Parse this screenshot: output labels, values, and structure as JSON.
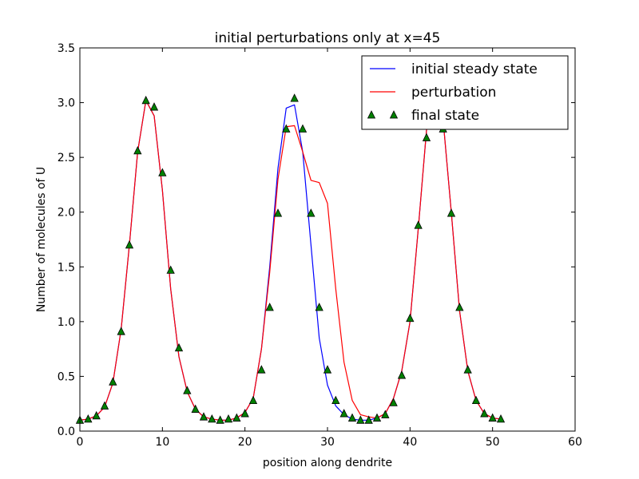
{
  "chart_data": {
    "type": "line",
    "title": "initial perturbations only at x=45",
    "xlabel": "position along dendrite",
    "ylabel": "Number of molecules of U",
    "xlim": [
      0,
      60
    ],
    "ylim": [
      0.0,
      3.5
    ],
    "xticks": [
      0,
      10,
      20,
      30,
      40,
      50,
      60
    ],
    "xtick_labels": [
      "0",
      "10",
      "20",
      "30",
      "40",
      "50",
      "60"
    ],
    "yticks": [
      0.0,
      0.5,
      1.0,
      1.5,
      2.0,
      2.5,
      3.0,
      3.5
    ],
    "ytick_labels": [
      "0.0",
      "0.5",
      "1.0",
      "1.5",
      "2.0",
      "2.5",
      "3.0",
      "3.5"
    ],
    "grid": false,
    "legend_position": "top-right",
    "x": [
      0,
      1,
      2,
      3,
      4,
      5,
      6,
      7,
      8,
      9,
      10,
      11,
      12,
      13,
      14,
      15,
      16,
      17,
      18,
      19,
      20,
      21,
      22,
      23,
      24,
      25,
      26,
      27,
      28,
      29,
      30,
      31,
      32,
      33,
      34,
      35,
      36,
      37,
      38,
      39,
      40,
      41,
      42,
      43,
      44,
      45,
      46,
      47,
      48,
      49,
      50,
      51
    ],
    "series": [
      {
        "name": "initial steady state",
        "color": "#0000ff",
        "style": "line",
        "values": [
          0.1,
          0.11,
          0.14,
          0.22,
          0.44,
          0.93,
          1.7,
          2.55,
          3.02,
          2.88,
          2.2,
          1.3,
          0.68,
          0.36,
          0.2,
          0.13,
          0.11,
          0.1,
          0.1,
          0.12,
          0.17,
          0.3,
          0.75,
          1.5,
          2.4,
          2.95,
          2.98,
          2.55,
          1.7,
          0.85,
          0.42,
          0.23,
          0.15,
          0.11,
          0.1,
          0.1,
          0.12,
          0.16,
          0.3,
          0.55,
          1.0,
          1.85,
          2.75,
          3.02,
          2.85,
          2.0,
          1.1,
          0.55,
          0.28,
          0.16,
          0.12,
          0.11
        ]
      },
      {
        "name": "perturbation",
        "color": "#ff0000",
        "style": "line",
        "values": [
          0.1,
          0.11,
          0.14,
          0.22,
          0.44,
          0.93,
          1.7,
          2.55,
          3.02,
          2.88,
          2.2,
          1.3,
          0.68,
          0.36,
          0.2,
          0.13,
          0.11,
          0.1,
          0.1,
          0.12,
          0.17,
          0.3,
          0.75,
          1.45,
          2.3,
          2.78,
          2.79,
          2.55,
          2.29,
          2.27,
          2.08,
          1.3,
          0.63,
          0.28,
          0.15,
          0.13,
          0.12,
          0.16,
          0.3,
          0.55,
          1.0,
          1.85,
          2.75,
          3.02,
          2.85,
          2.0,
          1.1,
          0.55,
          0.28,
          0.16,
          0.12,
          0.11
        ]
      },
      {
        "name": "final state",
        "color": "#008000",
        "style": "markers",
        "values": [
          0.1,
          0.11,
          0.14,
          0.23,
          0.45,
          0.91,
          1.7,
          2.56,
          3.02,
          2.96,
          2.36,
          1.47,
          0.76,
          0.37,
          0.2,
          0.13,
          0.11,
          0.1,
          0.11,
          0.12,
          0.16,
          0.28,
          0.56,
          1.13,
          1.99,
          2.76,
          3.04,
          2.76,
          1.99,
          1.13,
          0.56,
          0.28,
          0.16,
          0.12,
          0.1,
          0.1,
          0.12,
          0.15,
          0.26,
          0.51,
          1.03,
          1.88,
          2.68,
          2.97,
          2.76,
          1.99,
          1.13,
          0.56,
          0.28,
          0.16,
          0.12,
          0.11
        ]
      }
    ]
  }
}
